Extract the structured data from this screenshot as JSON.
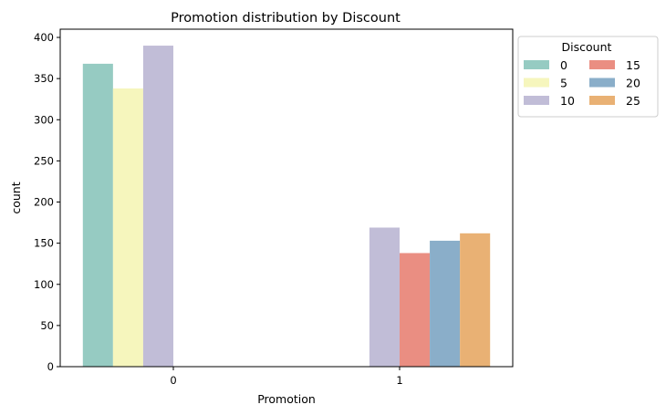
{
  "chart_data": {
    "type": "bar",
    "title": "Promotion distribution by Discount",
    "xlabel": "Promotion",
    "ylabel": "count",
    "categories": [
      "0",
      "1"
    ],
    "ylim": [
      0,
      410
    ],
    "yticks": [
      0,
      50,
      100,
      150,
      200,
      250,
      300,
      350,
      400
    ],
    "grid": false,
    "legend": {
      "title": "Discount",
      "placement": "outside top-right",
      "columns": 2
    },
    "series": [
      {
        "name": "0",
        "color": "#96cbc2",
        "values": [
          368,
          null
        ]
      },
      {
        "name": "5",
        "color": "#f6f6bd",
        "values": [
          338,
          null
        ]
      },
      {
        "name": "10",
        "color": "#c1bdd7",
        "values": [
          390,
          169
        ]
      },
      {
        "name": "15",
        "color": "#ea8e82",
        "values": [
          null,
          138
        ]
      },
      {
        "name": "20",
        "color": "#8aaec9",
        "values": [
          null,
          153
        ]
      },
      {
        "name": "25",
        "color": "#e9b174",
        "values": [
          null,
          162
        ]
      }
    ]
  }
}
